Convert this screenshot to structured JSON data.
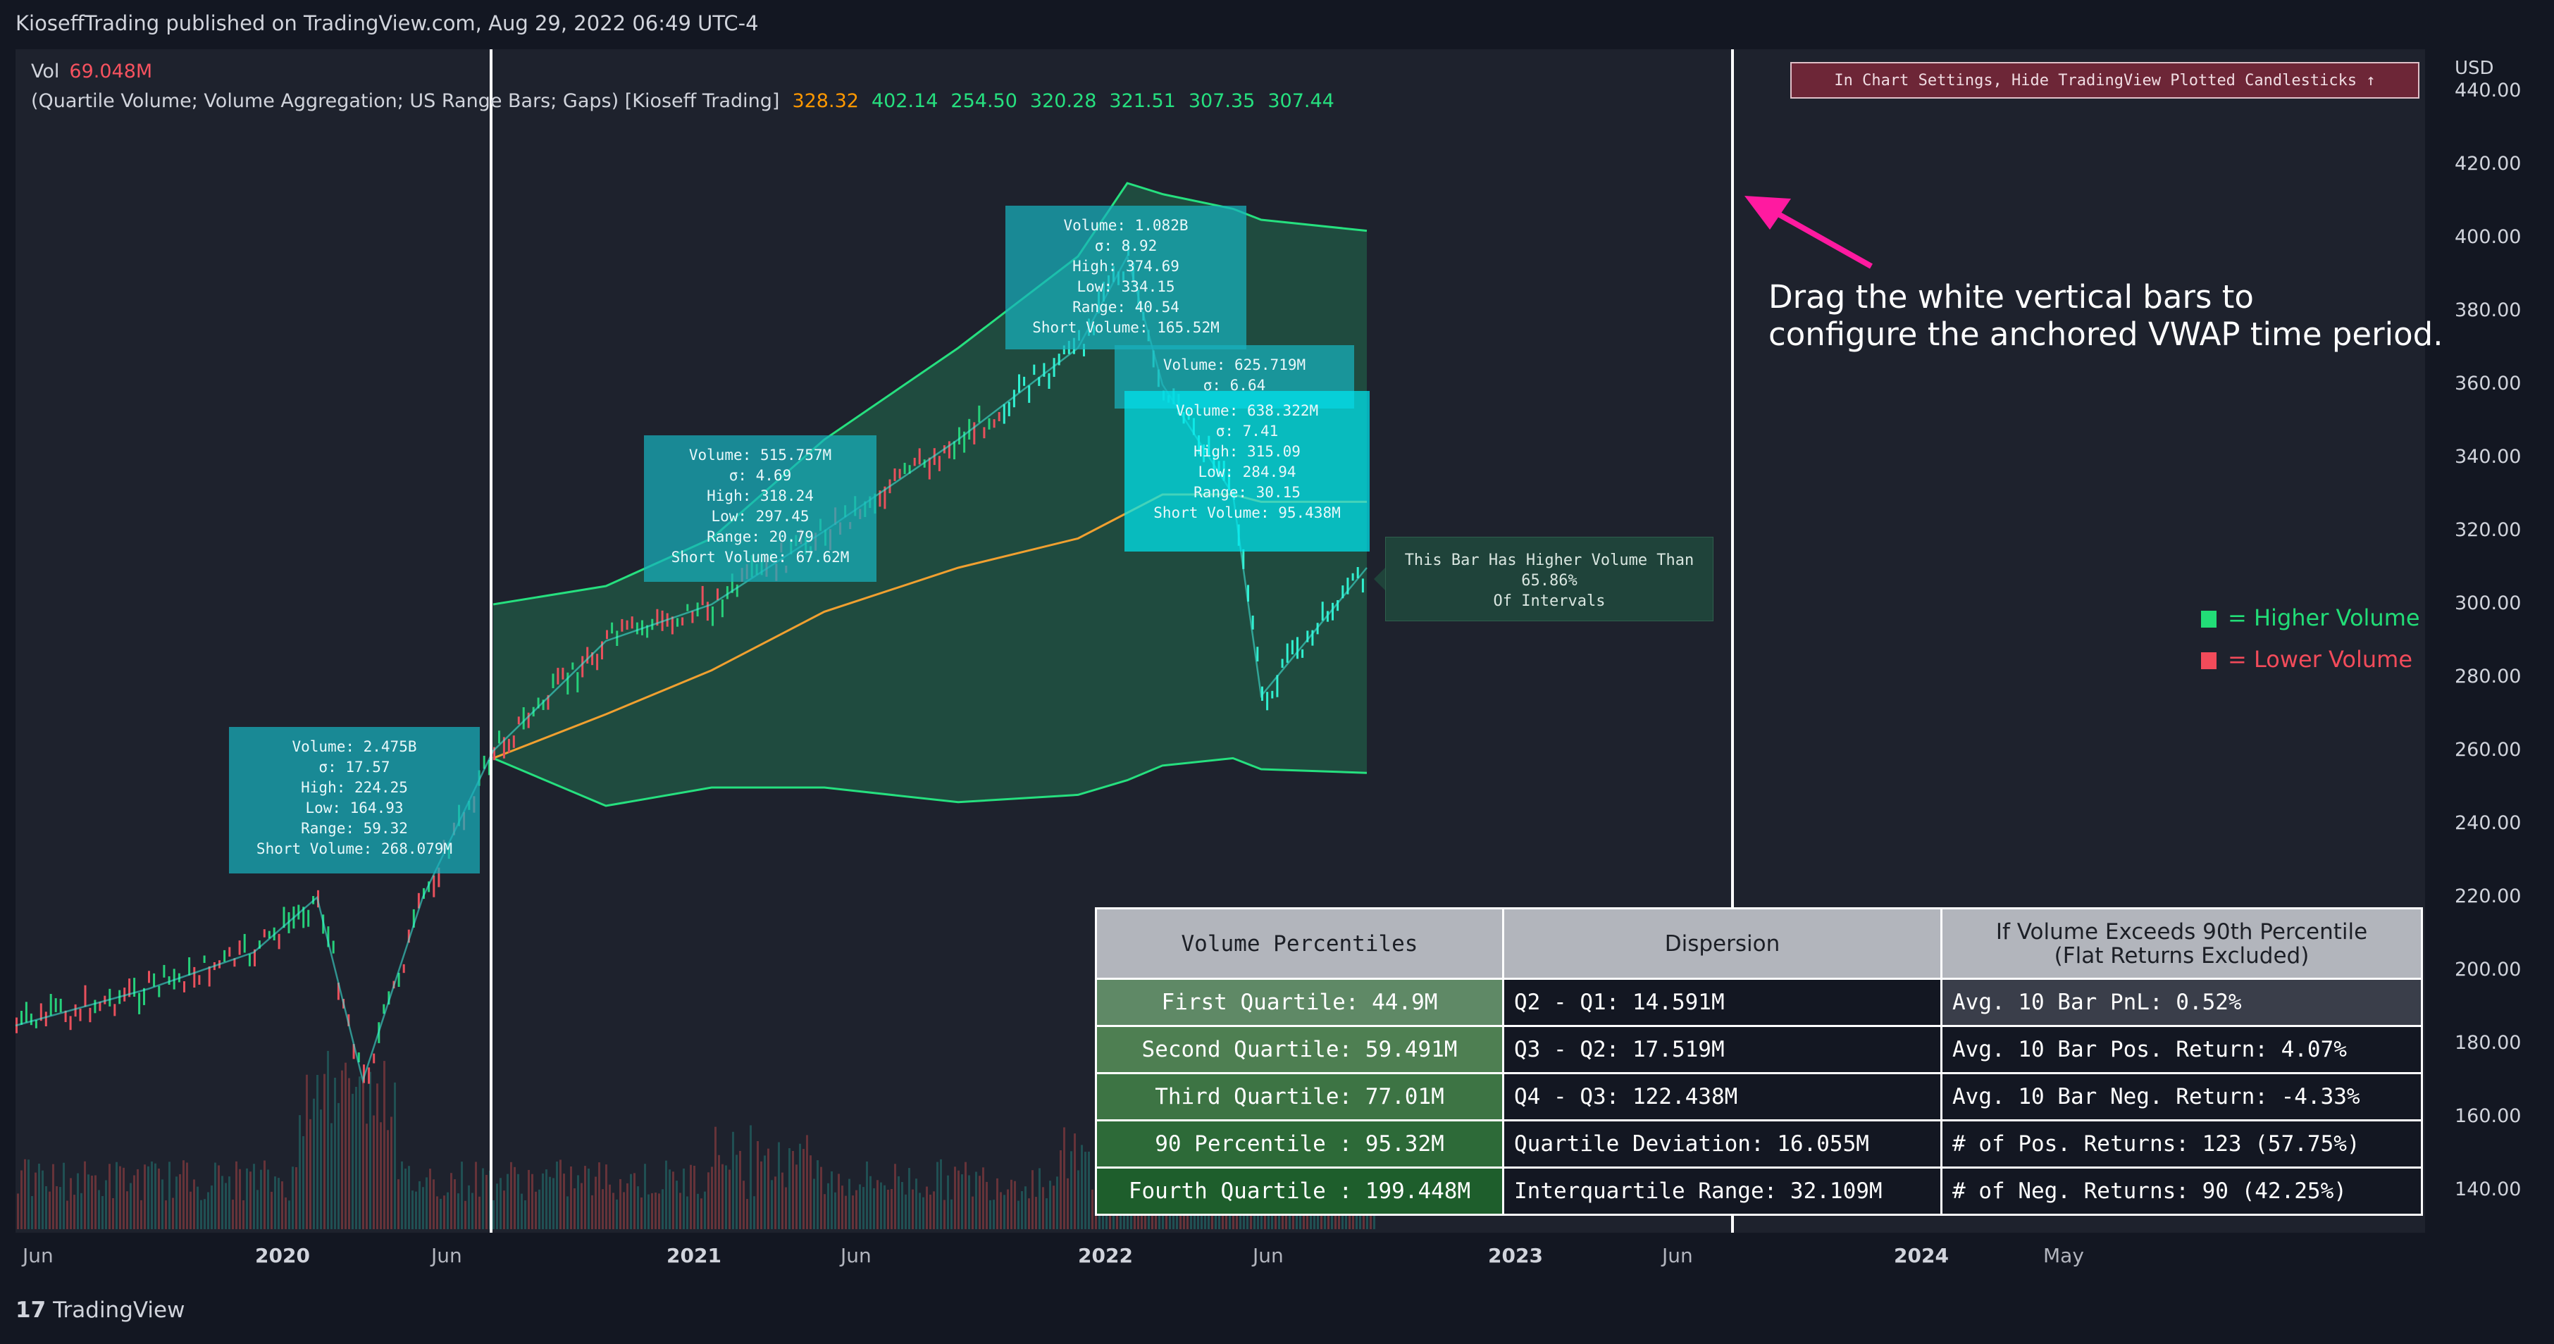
{
  "header": {
    "text": "KioseffTrading published on TradingView.com, Aug 29, 2022 06:49 UTC-4"
  },
  "legend": {
    "vol_label": "Vol",
    "vol_value": "69.048M",
    "indicator": "(Quartile Volume; Volume Aggregation; US Range Bars; Gaps) [Kioseff Trading]",
    "values": [
      {
        "text": "328.32",
        "color": "#ff9800"
      },
      {
        "text": "402.14",
        "color": "#26e07f"
      },
      {
        "text": "254.50",
        "color": "#26e07f"
      },
      {
        "text": "320.28",
        "color": "#26e07f"
      },
      {
        "text": "321.51",
        "color": "#26e07f"
      },
      {
        "text": "307.35",
        "color": "#26e07f"
      },
      {
        "text": "307.44",
        "color": "#26e07f"
      }
    ]
  },
  "settings_note": "In Chart Settings, Hide TradingView Plotted Candlesticks ↑",
  "drag_note": {
    "line1": "Drag the white vertical bars to",
    "line2": "configure the anchored VWAP time period."
  },
  "key": {
    "higher": "= Higher Volume",
    "lower": "= Lower Volume",
    "higher_color": "#22dd77",
    "lower_color": "#f24b5a"
  },
  "colors": {
    "background": "#131722",
    "pane": "#1e222d",
    "band": "#26e07f",
    "vwap": "#f0a030",
    "arrow": "#ff1aa0"
  },
  "info_boxes": [
    {
      "lines": [
        "Volume: 2.475B",
        "σ: 17.57",
        "High: 224.25",
        "Low: 164.93",
        "Range: 59.32",
        "Short Volume: 268.079M"
      ]
    },
    {
      "lines": [
        "Volume: 515.757M",
        "σ: 4.69",
        "High: 318.24",
        "Low: 297.45",
        "Range: 20.79",
        "Short Volume: 67.62M"
      ]
    },
    {
      "lines": [
        "Volume: 1.082B",
        "σ: 8.92",
        "High: 374.69",
        "Low: 334.15",
        "Range: 40.54",
        "Short Volume: 165.52M"
      ]
    },
    {
      "lines": [
        "Volume: 625.719M",
        "σ: 6.64"
      ]
    },
    {
      "lines": [
        "Volume: 638.322M",
        "σ: 7.41",
        "High: 315.09",
        "Low: 284.94",
        "Range: 30.15",
        "Short Volume: 95.438M"
      ]
    }
  ],
  "comparison_box": {
    "lines": [
      "This Bar Has Higher Volume Than",
      "65.86%",
      "Of Intervals"
    ]
  },
  "stats_table": {
    "headers": [
      "Volume Percentiles",
      "Dispersion",
      "If Volume Exceeds 90th Percentile",
      "(Flat Returns Excluded)"
    ],
    "rows": [
      [
        "First Quartile: 44.9M",
        "Q2 - Q1: 14.591M",
        "Avg. 10 Bar PnL: 0.52%"
      ],
      [
        "Second Quartile: 59.491M",
        "Q3 - Q2: 17.519M",
        "Avg. 10 Bar Pos. Return: 4.07%"
      ],
      [
        "Third Quartile: 77.01M",
        "Q4 - Q3: 122.438M",
        "Avg. 10 Bar Neg. Return: -4.33%"
      ],
      [
        "90 Percentile : 95.32M",
        "Quartile Deviation: 16.055M",
        "# of Pos. Returns: 123 (57.75%)"
      ],
      [
        "Fourth Quartile : 199.448M",
        "Interquartile Range: 32.109M",
        "# of Neg. Returns: 90 (42.25%)"
      ]
    ]
  },
  "price_axis": {
    "currency": "USD",
    "ticks": [
      "440.00",
      "420.00",
      "400.00",
      "380.00",
      "360.00",
      "340.00",
      "320.00",
      "300.00",
      "280.00",
      "260.00",
      "240.00",
      "220.00",
      "200.00",
      "180.00",
      "160.00",
      "140.00"
    ]
  },
  "time_axis": {
    "ticks": [
      {
        "label": "Jun",
        "bold": false
      },
      {
        "label": "2020",
        "bold": true
      },
      {
        "label": "Jun",
        "bold": false
      },
      {
        "label": "2021",
        "bold": true
      },
      {
        "label": "Jun",
        "bold": false
      },
      {
        "label": "2022",
        "bold": true
      },
      {
        "label": "Jun",
        "bold": false
      },
      {
        "label": "2023",
        "bold": true
      },
      {
        "label": "Jun",
        "bold": false
      },
      {
        "label": "2024",
        "bold": true
      },
      {
        "label": "May",
        "bold": false
      }
    ]
  },
  "footer": {
    "brand": "TradingView"
  },
  "chart_data": {
    "type": "line",
    "title": "",
    "ylabel": "USD",
    "ylim": [
      130,
      445
    ],
    "grid": false,
    "x": [
      "2019-06",
      "2019-09",
      "2019-12",
      "2020-02",
      "2020-03",
      "2020-05",
      "2020-07",
      "2020-09",
      "2020-12",
      "2021-03",
      "2021-06",
      "2021-09",
      "2021-12",
      "2022-02",
      "2022-04",
      "2022-06",
      "2022-08"
    ],
    "series": [
      {
        "name": "",
        "values": [
          185,
          195,
          205,
          220,
          170,
          220,
          260,
          290,
          300,
          320,
          345,
          370,
          395,
          360,
          330,
          275,
          310
        ]
      }
    ],
    "vwap": [
      null,
      null,
      null,
      null,
      null,
      null,
      258,
      270,
      282,
      298,
      310,
      318,
      325,
      330,
      330,
      328,
      328
    ],
    "upper_band": [
      null,
      null,
      null,
      null,
      null,
      null,
      300,
      305,
      318,
      345,
      370,
      395,
      415,
      412,
      408,
      405,
      402
    ],
    "lower_band": [
      null,
      null,
      null,
      null,
      null,
      null,
      258,
      245,
      250,
      250,
      246,
      248,
      252,
      256,
      258,
      255,
      254
    ],
    "annotations": [
      "Drag the white vertical bars to configure the anchored VWAP time period."
    ]
  }
}
